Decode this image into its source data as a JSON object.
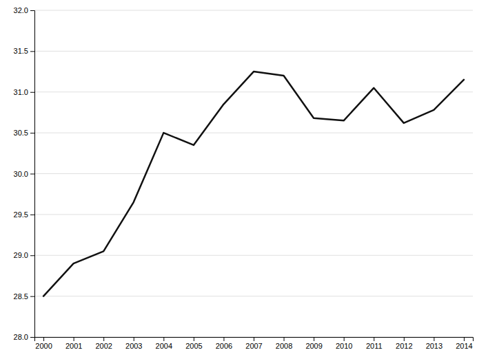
{
  "chart_data": {
    "type": "line",
    "x": [
      2000,
      2001,
      2002,
      2003,
      2004,
      2005,
      2006,
      2007,
      2008,
      2009,
      2010,
      2011,
      2012,
      2013,
      2014
    ],
    "values": [
      28.5,
      28.9,
      29.05,
      29.65,
      30.5,
      30.35,
      30.85,
      31.25,
      31.2,
      30.68,
      30.65,
      31.05,
      30.62,
      30.78,
      31.15
    ],
    "xlim": [
      1999.7,
      2014.3
    ],
    "xticks": [
      2000,
      2001,
      2002,
      2003,
      2004,
      2005,
      2006,
      2007,
      2008,
      2009,
      2010,
      2011,
      2012,
      2013,
      2014
    ],
    "ylim": [
      28.0,
      32.0
    ],
    "yticks": [
      {
        "value": 28.0,
        "label": "28.0"
      },
      28.5,
      {
        "value": 29.0,
        "label": "29.0"
      },
      29.5,
      {
        "value": 30.0,
        "label": "30.0"
      },
      30.5,
      {
        "value": 31.0,
        "label": "31.0"
      },
      31.5,
      {
        "value": 32.0,
        "label": "32.0"
      }
    ],
    "color": "#111111",
    "grid": "y"
  }
}
